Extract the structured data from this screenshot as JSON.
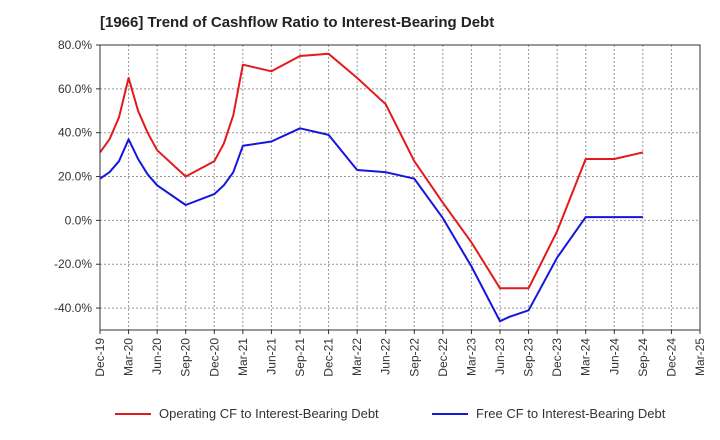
{
  "title": "[1966]  Trend of Cashflow Ratio to Interest-Bearing Debt",
  "chart_data": {
    "type": "line",
    "title": "[1966]  Trend of Cashflow Ratio to Interest-Bearing Debt",
    "xlabel": "",
    "ylabel": "",
    "ylim": [
      -50,
      80
    ],
    "yticks": [
      -40,
      -20,
      0,
      20,
      40,
      60,
      80
    ],
    "ytick_labels": [
      "-40.0%",
      "-20.0%",
      "0.0%",
      "20.0%",
      "40.0%",
      "60.0%",
      "80.0%"
    ],
    "x_categories": [
      "Dec-19",
      "Mar-20",
      "Jun-20",
      "Sep-20",
      "Dec-20",
      "Mar-21",
      "Jun-21",
      "Sep-21",
      "Dec-21",
      "Mar-22",
      "Jun-22",
      "Sep-22",
      "Dec-22",
      "Mar-23",
      "Jun-23",
      "Sep-23",
      "Dec-23",
      "Mar-24",
      "Jun-24",
      "Sep-24",
      "Dec-24",
      "Mar-25"
    ],
    "grid": true,
    "legend_position": "bottom",
    "series": [
      {
        "name": "Operating CF to Interest-Bearing Debt",
        "color": "#e31a1c",
        "points": [
          [
            "Dec-19",
            31
          ],
          [
            "Jan-20",
            37
          ],
          [
            "Feb-20",
            47
          ],
          [
            "Mar-20",
            65
          ],
          [
            "Apr-20",
            50
          ],
          [
            "May-20",
            40
          ],
          [
            "Jun-20",
            32
          ],
          [
            "Sep-20",
            20
          ],
          [
            "Dec-20",
            27
          ],
          [
            "Jan-21",
            35
          ],
          [
            "Feb-21",
            48
          ],
          [
            "Mar-21",
            71
          ],
          [
            "Jun-21",
            68
          ],
          [
            "Sep-21",
            75
          ],
          [
            "Dec-21",
            76
          ],
          [
            "Mar-22",
            65
          ],
          [
            "Jun-22",
            53
          ],
          [
            "Sep-22",
            27
          ],
          [
            "Dec-22",
            8
          ],
          [
            "Mar-23",
            -10
          ],
          [
            "Jun-23",
            -31
          ],
          [
            "Sep-23",
            -31
          ],
          [
            "Dec-23",
            -5
          ],
          [
            "Mar-24",
            28
          ],
          [
            "Jun-24",
            28
          ],
          [
            "Sep-24",
            31
          ]
        ]
      },
      {
        "name": "Free CF to Interest-Bearing Debt",
        "color": "#1515e0",
        "points": [
          [
            "Dec-19",
            19
          ],
          [
            "Jan-20",
            22
          ],
          [
            "Feb-20",
            27
          ],
          [
            "Mar-20",
            37
          ],
          [
            "Apr-20",
            28
          ],
          [
            "May-20",
            21
          ],
          [
            "Jun-20",
            16
          ],
          [
            "Sep-20",
            7
          ],
          [
            "Dec-20",
            12
          ],
          [
            "Jan-21",
            16
          ],
          [
            "Feb-21",
            22
          ],
          [
            "Mar-21",
            34
          ],
          [
            "Jun-21",
            36
          ],
          [
            "Sep-21",
            42
          ],
          [
            "Dec-21",
            39
          ],
          [
            "Mar-22",
            23
          ],
          [
            "Jun-22",
            22
          ],
          [
            "Sep-22",
            19
          ],
          [
            "Dec-22",
            1
          ],
          [
            "Mar-23",
            -21
          ],
          [
            "Jun-23",
            -46
          ],
          [
            "Jul-23",
            -44
          ],
          [
            "Sep-23",
            -41
          ],
          [
            "Dec-23",
            -17
          ],
          [
            "Mar-24",
            1.5
          ],
          [
            "Jun-24",
            1.5
          ],
          [
            "Sep-24",
            1.5
          ]
        ]
      }
    ]
  }
}
